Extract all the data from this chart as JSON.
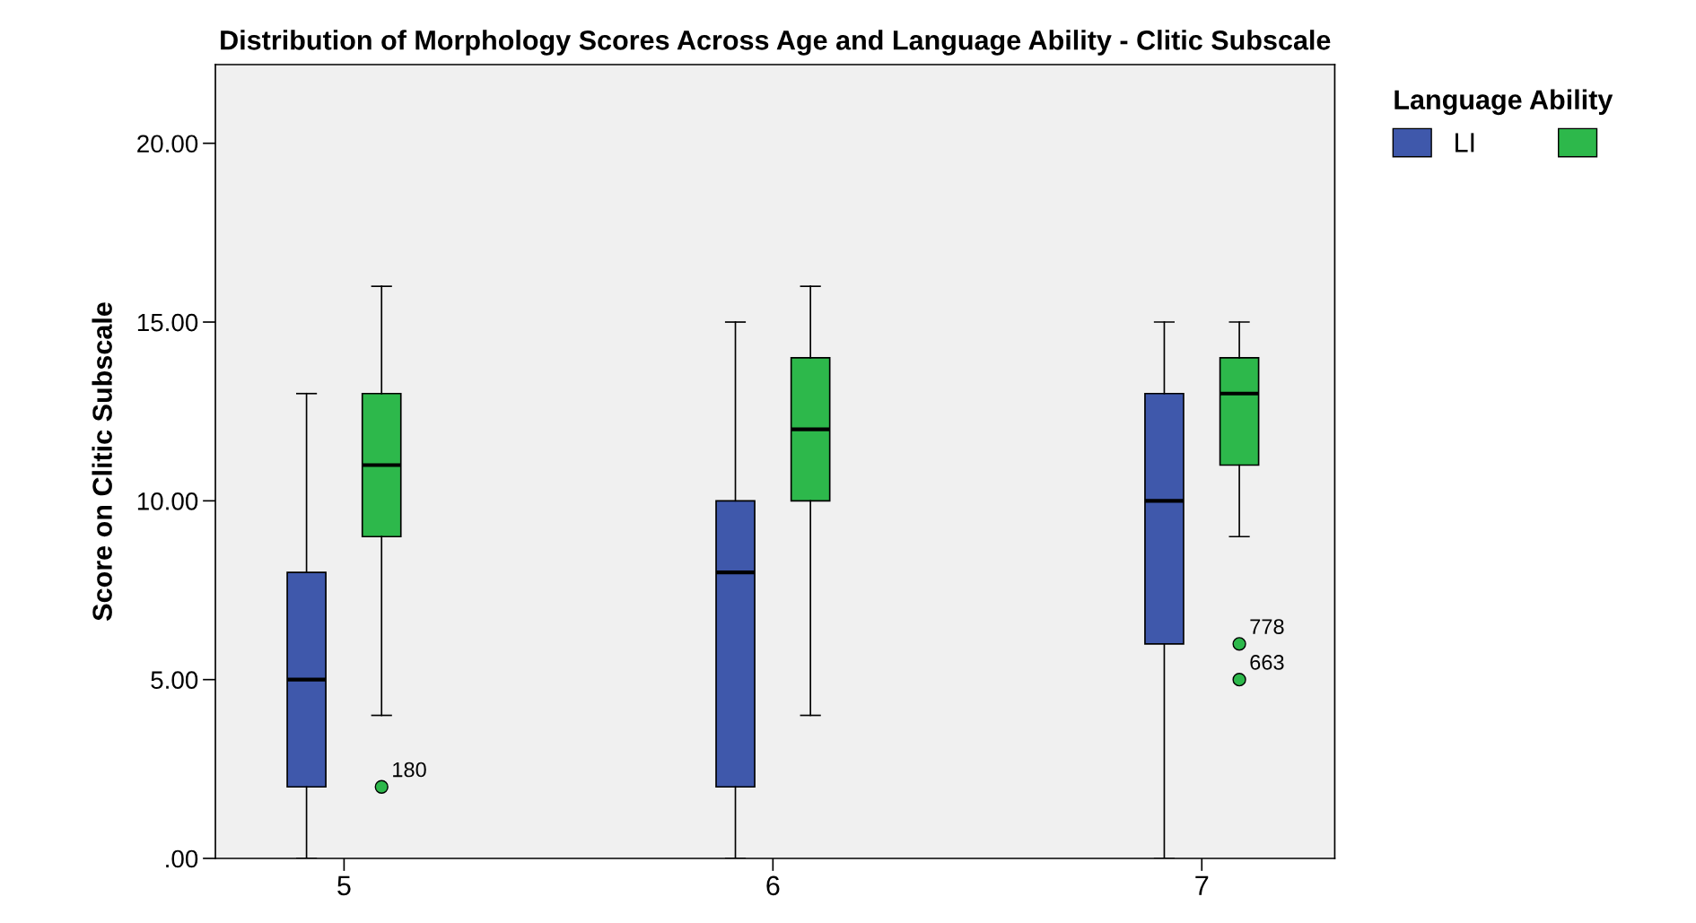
{
  "chart_data": {
    "type": "box",
    "title": "Distribution of Morphology Scores Across Age and Language Ability - Clitic Subscale",
    "ylabel": "Score on Clitic Subscale",
    "legend_title": "Language Ability",
    "categories": [
      "5",
      "6",
      "7"
    ],
    "series": [
      {
        "name": "LI",
        "color": "#3f58ab",
        "boxes": [
          {
            "low": 0,
            "q1": 2,
            "median": 5,
            "q3": 8,
            "high": 13
          },
          {
            "low": 0,
            "q1": 2,
            "median": 8,
            "q3": 10,
            "high": 15
          },
          {
            "low": 0,
            "q1": 6,
            "median": 10,
            "q3": 13,
            "high": 15
          }
        ]
      },
      {
        "color": "#2db84b",
        "boxes": [
          {
            "low": 4,
            "q1": 9,
            "median": 11,
            "q3": 13,
            "high": 16,
            "outliers": [
              2
            ]
          },
          {
            "low": 4,
            "q1": 10,
            "median": 12,
            "q3": 14,
            "high": 16
          },
          {
            "low": 9,
            "q1": 11,
            "median": 13,
            "q3": 14,
            "high": 15,
            "outliers": [
              5,
              6
            ]
          }
        ]
      }
    ],
    "annotations": [
      "180",
      "663",
      "778"
    ],
    "ylim": [
      0,
      22.2
    ],
    "yticks": [
      {
        "value": 0,
        "label": ".00"
      },
      {
        "value": 5,
        "label": "5.00"
      },
      {
        "value": 10,
        "label": "10.00"
      },
      {
        "value": 15,
        "label": "15.00"
      },
      {
        "value": 20,
        "label": "20.00"
      }
    ],
    "grid": false,
    "legend": "top right"
  }
}
